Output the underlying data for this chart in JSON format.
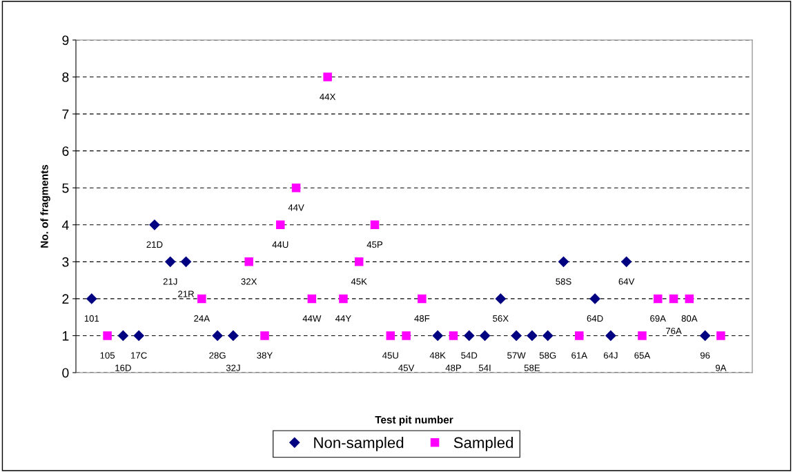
{
  "chart_data": {
    "type": "scatter",
    "xlabel": "Test pit number",
    "ylabel": "No. of fragments",
    "categories": [
      "101",
      "105",
      "16D",
      "17C",
      "21D",
      "21J",
      "21R",
      "24A",
      "28G",
      "32J",
      "32X",
      "38Y",
      "44U",
      "44V",
      "44W",
      "44X",
      "44Y",
      "45K",
      "45P",
      "45U",
      "45V",
      "48F",
      "48K",
      "48P",
      "54D",
      "54I",
      "56X",
      "57W",
      "58E",
      "58G",
      "58S",
      "61A",
      "64D",
      "64J",
      "64V",
      "65A",
      "69A",
      "76A",
      "80A",
      "96",
      "9A"
    ],
    "series": [
      {
        "name": "Non-sampled",
        "color": "#000080",
        "marker": "diamond",
        "values": [
          2,
          null,
          1,
          1,
          4,
          3,
          3,
          null,
          1,
          1,
          null,
          null,
          null,
          null,
          null,
          null,
          null,
          null,
          null,
          null,
          null,
          null,
          1,
          null,
          1,
          1,
          2,
          1,
          1,
          1,
          3,
          null,
          2,
          1,
          3,
          null,
          null,
          null,
          null,
          1,
          null
        ]
      },
      {
        "name": "Sampled",
        "color": "#ff00ff",
        "marker": "square",
        "values": [
          null,
          1,
          null,
          null,
          null,
          null,
          null,
          2,
          null,
          null,
          3,
          1,
          4,
          5,
          2,
          8,
          2,
          3,
          4,
          1,
          1,
          2,
          null,
          1,
          null,
          null,
          null,
          null,
          null,
          null,
          null,
          1,
          null,
          null,
          null,
          1,
          2,
          2,
          2,
          null,
          1
        ]
      }
    ],
    "ylim": [
      0,
      9
    ],
    "yticks": [
      0,
      1,
      2,
      3,
      4,
      5,
      6,
      7,
      8,
      9
    ],
    "grid": "y",
    "legend": "bottom",
    "tick_labels": "y"
  }
}
